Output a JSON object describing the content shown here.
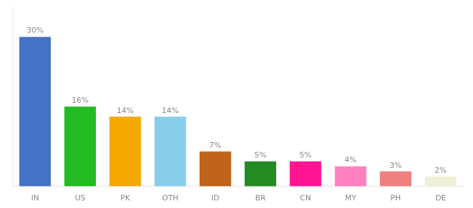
{
  "chart_data": {
    "type": "bar",
    "categories": [
      "IN",
      "US",
      "PK",
      "OTH",
      "ID",
      "BR",
      "CN",
      "MY",
      "PH",
      "DE"
    ],
    "values": [
      30,
      16,
      14,
      14,
      7,
      5,
      5,
      4,
      3,
      2
    ],
    "value_labels": [
      "30%",
      "16%",
      "14%",
      "14%",
      "7%",
      "5%",
      "5%",
      "4%",
      "3%",
      "2%"
    ],
    "colors": [
      "#4472c4",
      "#22bb22",
      "#f5a800",
      "#87ceeb",
      "#c0621a",
      "#228b22",
      "#ff1493",
      "#ff80c0",
      "#f08080",
      "#f0f0d8"
    ],
    "ylim": [
      0,
      36
    ],
    "grid": false,
    "data_labels": true,
    "tick_labels": "x"
  }
}
